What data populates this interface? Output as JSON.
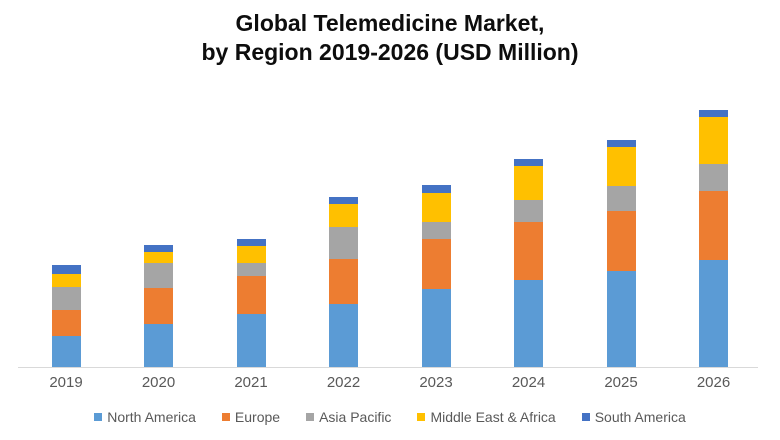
{
  "title": {
    "line1": "Global Telemedicine Market,",
    "line2": "by Region 2019-2026 (USD Million)"
  },
  "colors": {
    "north_america": "#5B9BD5",
    "europe": "#ED7D31",
    "asia_pacific": "#A5A5A5",
    "middle_east_africa": "#FFC000",
    "south_america": "#4472C4",
    "axis_line": "#D9D9D9",
    "label_text": "#595959",
    "title_text": "#0D0D0D"
  },
  "chart_data": {
    "type": "bar",
    "stacked": true,
    "title": "Global Telemedicine Market, by Region 2019-2026 (USD Million)",
    "xlabel": "",
    "ylabel": "USD Million",
    "note": "No value axis shown in figure; values are relative segment heights estimated from pixels",
    "grid": false,
    "legend_position": "bottom",
    "categories": [
      "2019",
      "2020",
      "2021",
      "2022",
      "2023",
      "2024",
      "2025",
      "2026"
    ],
    "series": [
      {
        "name": "North America",
        "color": "#5B9BD5",
        "values": [
          31,
          43,
          53,
          63,
          78,
          87,
          96,
          107
        ]
      },
      {
        "name": "Europe",
        "color": "#ED7D31",
        "values": [
          26,
          36,
          38,
          45,
          50,
          58,
          60,
          69
        ]
      },
      {
        "name": "Asia Pacific",
        "color": "#A5A5A5",
        "values": [
          23,
          25,
          13,
          32,
          17,
          22,
          25,
          27
        ]
      },
      {
        "name": "Middle East & Africa",
        "color": "#FFC000",
        "values": [
          13,
          11,
          17,
          23,
          29,
          34,
          39,
          47
        ]
      },
      {
        "name": "South America",
        "color": "#4472C4",
        "values": [
          9,
          7,
          7,
          7,
          8,
          7,
          7,
          7
        ]
      }
    ],
    "totals": [
      102,
      122,
      128,
      170,
      182,
      208,
      227,
      257
    ]
  }
}
